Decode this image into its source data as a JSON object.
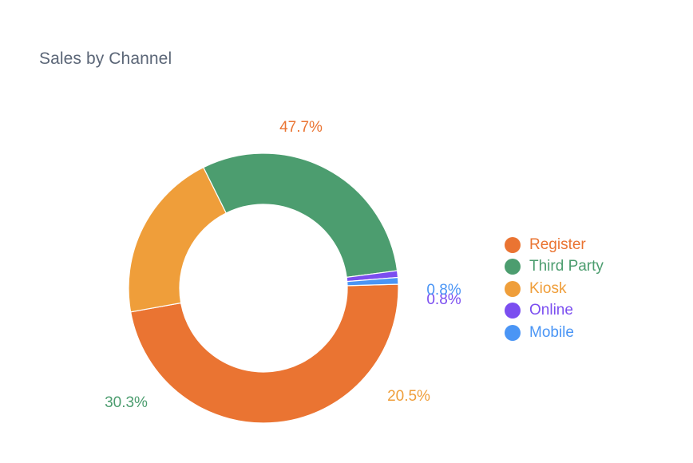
{
  "chart_data": {
    "type": "pie",
    "variant": "donut",
    "title": "Sales by Channel",
    "legend_position": "right",
    "slices": [
      {
        "name": "Register",
        "percent": 47.7,
        "label": "47.7%",
        "color": "#ea7432"
      },
      {
        "name": "Kiosk",
        "percent": 20.5,
        "label": "20.5%",
        "color": "#ef9e3a"
      },
      {
        "name": "Third Party",
        "percent": 30.3,
        "label": "30.3%",
        "color": "#4c9d6f"
      },
      {
        "name": "Online",
        "percent": 0.8,
        "label": "0.8%",
        "color": "#7b4ef0"
      },
      {
        "name": "Mobile",
        "percent": 0.8,
        "label": "0.8%",
        "color": "#4a95f5"
      }
    ],
    "legend": [
      {
        "name": "Register",
        "color": "#ea7432"
      },
      {
        "name": "Third Party",
        "color": "#4c9d6f"
      },
      {
        "name": "Kiosk",
        "color": "#ef9e3a"
      },
      {
        "name": "Online",
        "color": "#7b4ef0"
      },
      {
        "name": "Mobile",
        "color": "#4a95f5"
      }
    ]
  }
}
